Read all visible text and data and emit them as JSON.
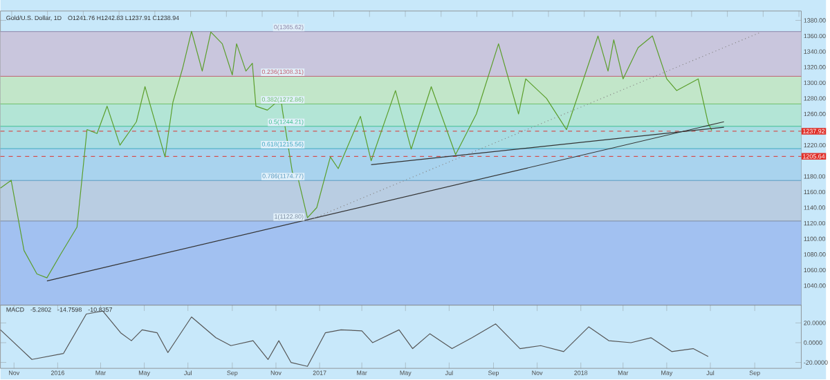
{
  "chart_data": [
    {
      "type": "line",
      "title": "Gold/U.S. Dollar, 1D",
      "subtitle": "O1241.76 H1242.83 L1237.91 C1238.94",
      "xlim": [
        "2015-10-13",
        "2018-11-05"
      ],
      "ylim": [
        1015,
        1392
      ],
      "tick_labels": "y",
      "yticks": [
        {
          "value": 1040,
          "label": "1040.00"
        },
        {
          "value": 1060,
          "label": "1060.00"
        },
        {
          "value": 1080,
          "label": "1080.00"
        },
        {
          "value": 1100,
          "label": "1100.00"
        },
        {
          "value": 1120,
          "label": "1120.00"
        },
        {
          "value": 1140,
          "label": "1140.00"
        },
        {
          "value": 1160,
          "label": "1160.00"
        },
        {
          "value": 1180,
          "label": "1180.00"
        },
        {
          "value": 1220,
          "label": "1220.00"
        },
        {
          "value": 1260,
          "label": "1260.00"
        },
        {
          "value": 1280,
          "label": "1280.00"
        },
        {
          "value": 1300,
          "label": "1300.00"
        },
        {
          "value": 1320,
          "label": "1320.00"
        },
        {
          "value": 1340,
          "label": "1340.00"
        },
        {
          "value": 1360,
          "label": "1360.00"
        },
        {
          "value": 1380,
          "label": "1380.00"
        }
      ],
      "bands": [
        {
          "axis": "y",
          "from": 1308.31,
          "to": 1365.62,
          "color": "#c9c6dd"
        },
        {
          "axis": "y",
          "from": 1272.86,
          "to": 1308.31,
          "color": "#c2e6c9"
        },
        {
          "axis": "y",
          "from": 1244.21,
          "to": 1272.86,
          "color": "#b3e5d6"
        },
        {
          "axis": "y",
          "from": 1215.56,
          "to": 1244.21,
          "color": "#a9dde3"
        },
        {
          "axis": "y",
          "from": 1174.77,
          "to": 1215.56,
          "color": "#a9d3ee"
        },
        {
          "axis": "y",
          "from": 1122.8,
          "to": 1174.77,
          "color": "#b9cde2"
        },
        {
          "axis": "y",
          "from": 1015,
          "to": 1122.8,
          "color": "#a2c1f1"
        }
      ],
      "ref_lines": [
        {
          "axis": "y",
          "value": 1365.62,
          "label": "0(1365.62)",
          "color": "#8c88aa",
          "line_style": "solid"
        },
        {
          "axis": "y",
          "value": 1308.31,
          "label": "0.236(1308.31)",
          "color": "#c06070",
          "line_style": "solid"
        },
        {
          "axis": "y",
          "value": 1272.86,
          "label": "0.382(1272.86)",
          "color": "#6fbf6a",
          "line_style": "solid"
        },
        {
          "axis": "y",
          "value": 1244.21,
          "label": "0.5(1244.21)",
          "color": "#3fbf8f",
          "line_style": "solid"
        },
        {
          "axis": "y",
          "value": 1215.56,
          "label": "0.618(1215.56)",
          "color": "#3fa6c0",
          "line_style": "solid"
        },
        {
          "axis": "y",
          "value": 1174.77,
          "label": "0.786(1174.77)",
          "color": "#5a9ac0",
          "line_style": "solid"
        },
        {
          "axis": "y",
          "value": 1122.8,
          "label": "1(1122.80)",
          "color": "#7a8aa0",
          "line_style": "solid"
        },
        {
          "axis": "y",
          "value": 1237.92,
          "label": "1237.92",
          "color": "#e0302a",
          "line_style": "dashed"
        },
        {
          "axis": "y",
          "value": 1205.64,
          "label": "1205.64",
          "color": "#e0302a",
          "line_style": "dashed"
        }
      ],
      "series": [
        {
          "color": "#5a9e2a",
          "x": [
            "2015-10-13",
            "2015-10-28",
            "2015-11-15",
            "2015-12-03",
            "2015-12-17",
            "2016-01-05",
            "2016-01-28",
            "2016-02-11",
            "2016-02-25",
            "2016-03-10",
            "2016-03-28",
            "2016-04-20",
            "2016-05-02",
            "2016-05-30",
            "2016-06-10",
            "2016-06-24",
            "2016-07-06",
            "2016-07-21",
            "2016-08-02",
            "2016-08-18",
            "2016-09-01",
            "2016-09-07",
            "2016-09-20",
            "2016-09-29",
            "2016-10-04",
            "2016-10-20",
            "2016-11-08",
            "2016-11-10",
            "2016-11-24",
            "2016-12-02",
            "2016-12-15",
            "2016-12-28",
            "2017-01-16",
            "2017-01-27",
            "2017-02-27",
            "2017-03-14",
            "2017-04-17",
            "2017-05-09",
            "2017-06-06",
            "2017-07-10",
            "2017-08-08",
            "2017-09-08",
            "2017-10-06",
            "2017-10-16",
            "2017-11-14",
            "2017-12-12",
            "2018-01-25",
            "2018-02-08",
            "2018-02-16",
            "2018-03-01",
            "2018-03-22",
            "2018-04-11",
            "2018-05-01",
            "2018-05-15",
            "2018-06-14",
            "2018-06-28",
            "2018-07-03"
          ],
          "values": [
            1165,
            1175,
            1085,
            1055,
            1050,
            1080,
            1115,
            1240,
            1235,
            1270,
            1220,
            1250,
            1295,
            1205,
            1275,
            1320,
            1366,
            1315,
            1365,
            1350,
            1310,
            1350,
            1315,
            1325,
            1270,
            1265,
            1280,
            1265,
            1185,
            1177,
            1127,
            1140,
            1205,
            1190,
            1257,
            1200,
            1290,
            1215,
            1295,
            1208,
            1260,
            1350,
            1260,
            1305,
            1280,
            1240,
            1360,
            1315,
            1355,
            1305,
            1345,
            1360,
            1305,
            1290,
            1305,
            1248,
            1239
          ]
        },
        {
          "color": "#333333",
          "x": [
            "2015-12-17",
            "2018-07-20"
          ],
          "values": [
            1046,
            1250
          ]
        },
        {
          "color": "#333333",
          "x": [
            "2017-03-14",
            "2018-07-20"
          ],
          "values": [
            1195,
            1243
          ]
        },
        {
          "color": "#888888",
          "line_style": "dotted",
          "x": [
            "2016-12-15",
            "2018-09-10"
          ],
          "values": [
            1123,
            1365
          ]
        }
      ]
    },
    {
      "type": "line",
      "title": "MACD",
      "annotations": [
        "-5.2802",
        "-14.7598",
        "-10.8357"
      ],
      "xlim": [
        "2015-10-13",
        "2018-11-05"
      ],
      "ylim": [
        -26,
        38
      ],
      "yticks": [
        {
          "value": -20,
          "label": "-20.0000"
        },
        {
          "value": 0,
          "label": "0.0000"
        },
        {
          "value": 20,
          "label": "20.0000"
        }
      ],
      "xticks": [
        {
          "value": "2015-11-01",
          "label": "Nov"
        },
        {
          "value": "2016-01-01",
          "label": "2016"
        },
        {
          "value": "2016-03-01",
          "label": "Mar"
        },
        {
          "value": "2016-05-01",
          "label": "May"
        },
        {
          "value": "2016-07-01",
          "label": "Jul"
        },
        {
          "value": "2016-09-01",
          "label": "Sep"
        },
        {
          "value": "2016-11-01",
          "label": "Nov"
        },
        {
          "value": "2017-01-01",
          "label": "2017"
        },
        {
          "value": "2017-03-01",
          "label": "Mar"
        },
        {
          "value": "2017-05-01",
          "label": "May"
        },
        {
          "value": "2017-07-01",
          "label": "Jul"
        },
        {
          "value": "2017-09-01",
          "label": "Sep"
        },
        {
          "value": "2017-11-01",
          "label": "Nov"
        },
        {
          "value": "2018-01-01",
          "label": "2018"
        },
        {
          "value": "2018-03-01",
          "label": "Mar"
        },
        {
          "value": "2018-05-01",
          "label": "May"
        },
        {
          "value": "2018-07-01",
          "label": "Jul"
        },
        {
          "value": "2018-09-01",
          "label": "Sep"
        }
      ],
      "series": [
        {
          "color": "#555555",
          "x": [
            "2015-10-13",
            "2015-11-26",
            "2016-01-09",
            "2016-02-10",
            "2016-03-04",
            "2016-03-29",
            "2016-04-13",
            "2016-04-28",
            "2016-05-19",
            "2016-06-03",
            "2016-07-06",
            "2016-08-09",
            "2016-08-30",
            "2016-09-30",
            "2016-10-21",
            "2016-11-05",
            "2016-11-22",
            "2016-12-15",
            "2017-01-09",
            "2017-01-31",
            "2017-03-01",
            "2017-03-16",
            "2017-04-22",
            "2017-05-11",
            "2017-06-04",
            "2017-07-05",
            "2017-08-02",
            "2017-09-04",
            "2017-10-08",
            "2017-11-06",
            "2017-12-08",
            "2018-01-12",
            "2018-02-09",
            "2018-03-12",
            "2018-04-09",
            "2018-05-08",
            "2018-06-07",
            "2018-06-28"
          ],
          "values": [
            13,
            -17,
            -11,
            29,
            32,
            10,
            2,
            13,
            10,
            -10,
            26,
            5,
            -3,
            2,
            -17,
            2,
            -20,
            -24,
            10,
            13,
            12,
            0,
            13,
            -6,
            9,
            -6,
            5,
            19,
            -6,
            -3,
            -9,
            16,
            2,
            0,
            5,
            -9,
            -6,
            -14
          ]
        }
      ]
    }
  ]
}
